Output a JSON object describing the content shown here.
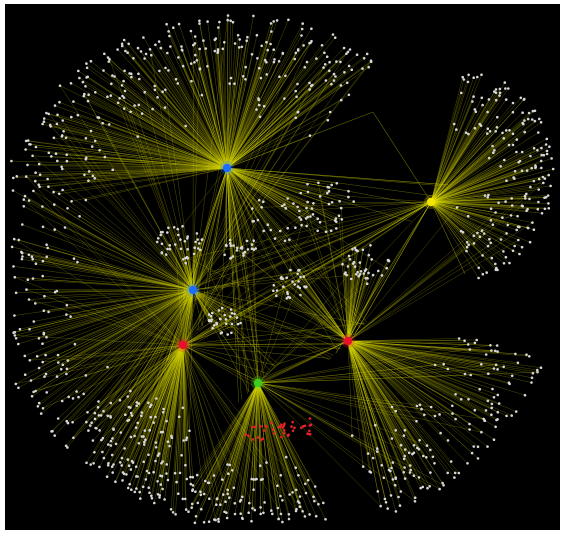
{
  "graph": {
    "background": "#000000",
    "edge_color": "#d4d400",
    "leaf_node_color": "#d8d8d8",
    "highlight_node_color": "#e8202a",
    "hubs": [
      {
        "name": "hub-blue-top",
        "color": "#1a6dff"
      },
      {
        "name": "hub-yellow",
        "color": "#f2e600"
      },
      {
        "name": "hub-blue-middle",
        "color": "#1a6dff"
      },
      {
        "name": "hub-red-left",
        "color": "#e8102a"
      },
      {
        "name": "hub-red-right",
        "color": "#e8102a"
      },
      {
        "name": "hub-green",
        "color": "#3ecb1e"
      }
    ]
  }
}
